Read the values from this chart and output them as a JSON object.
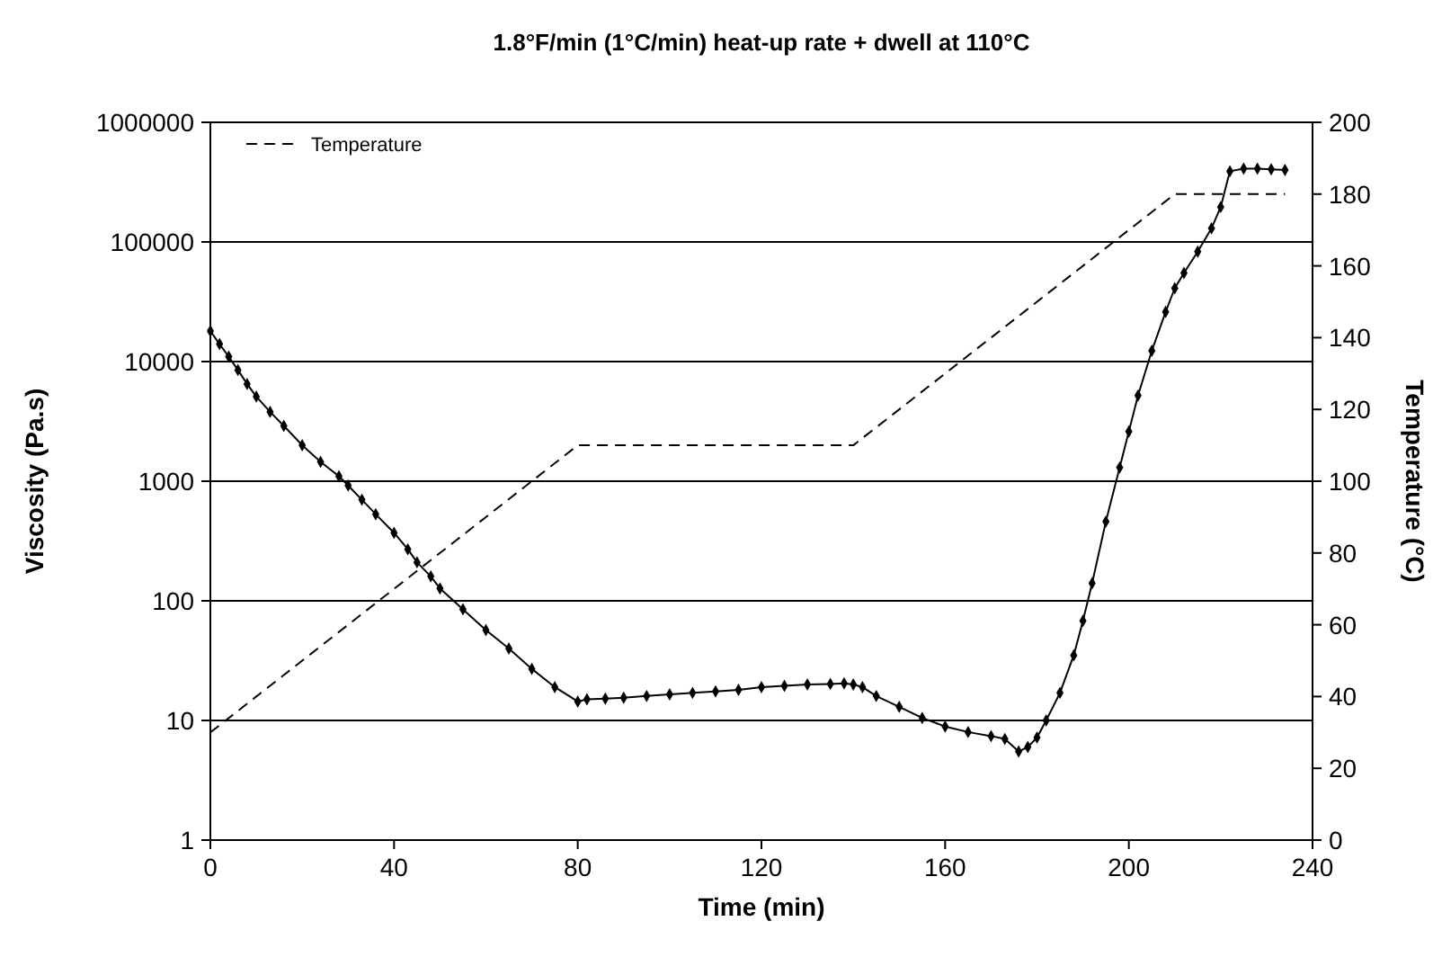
{
  "chart_data": {
    "type": "line",
    "title": "1.8°F/min (1°C/min) heat-up rate + dwell at 110°C",
    "xlabel": "Time (min)",
    "ylabel": "Viscosity (Pa.s)",
    "y2label": "Temperature (°C)",
    "log": "y",
    "grid": "y",
    "legend": "top left",
    "xlim": [
      0,
      240
    ],
    "xticks": [
      0,
      40,
      80,
      120,
      160,
      200,
      240
    ],
    "ylim": [
      1,
      1000000
    ],
    "yticks": [
      1,
      10,
      100,
      1000,
      10000,
      100000,
      1000000
    ],
    "y2lim": [
      0,
      200
    ],
    "y2ticks": [
      0,
      20,
      40,
      60,
      80,
      100,
      120,
      140,
      160,
      180,
      200
    ],
    "series": [
      {
        "color": "#000000",
        "marker": "diamond",
        "line_style": "solid",
        "x": [
          0,
          2,
          4,
          6,
          8,
          10,
          13,
          16,
          20,
          24,
          28,
          30,
          33,
          36,
          40,
          43,
          45,
          48,
          50,
          55,
          60,
          65,
          70,
          75,
          80,
          82,
          86,
          90,
          95,
          100,
          105,
          110,
          115,
          120,
          125,
          130,
          135,
          138,
          140,
          142,
          145,
          150,
          155,
          160,
          165,
          170,
          173,
          176,
          178,
          180,
          182,
          185,
          188,
          190,
          192,
          195,
          198,
          200,
          202,
          205,
          208,
          210,
          212,
          215,
          218,
          220,
          222,
          225,
          228,
          231,
          234
        ],
        "values": [
          18000,
          14000,
          11000,
          8500,
          6500,
          5100,
          3800,
          2900,
          2000,
          1450,
          1100,
          920,
          700,
          530,
          370,
          270,
          210,
          160,
          127,
          85,
          57,
          40,
          27,
          19,
          14.4,
          15,
          15.2,
          15.5,
          16,
          16.5,
          17,
          17.5,
          18,
          19,
          19.5,
          20,
          20.2,
          20.4,
          20,
          19,
          16,
          13,
          10.5,
          8.9,
          8,
          7.4,
          7,
          5.5,
          6,
          7.2,
          10,
          17,
          35,
          68,
          140,
          460,
          1300,
          2600,
          5200,
          12300,
          26000,
          41000,
          55000,
          83000,
          130000,
          196000,
          390000,
          410000,
          410000,
          405000,
          400000
        ]
      },
      {
        "name": "Temperature",
        "color": "#000000",
        "axis": "y2",
        "marker": "none",
        "line_style": "dashed",
        "x": [
          0,
          80,
          140,
          210,
          234
        ],
        "values": [
          30,
          110,
          110,
          180,
          180
        ]
      }
    ]
  }
}
